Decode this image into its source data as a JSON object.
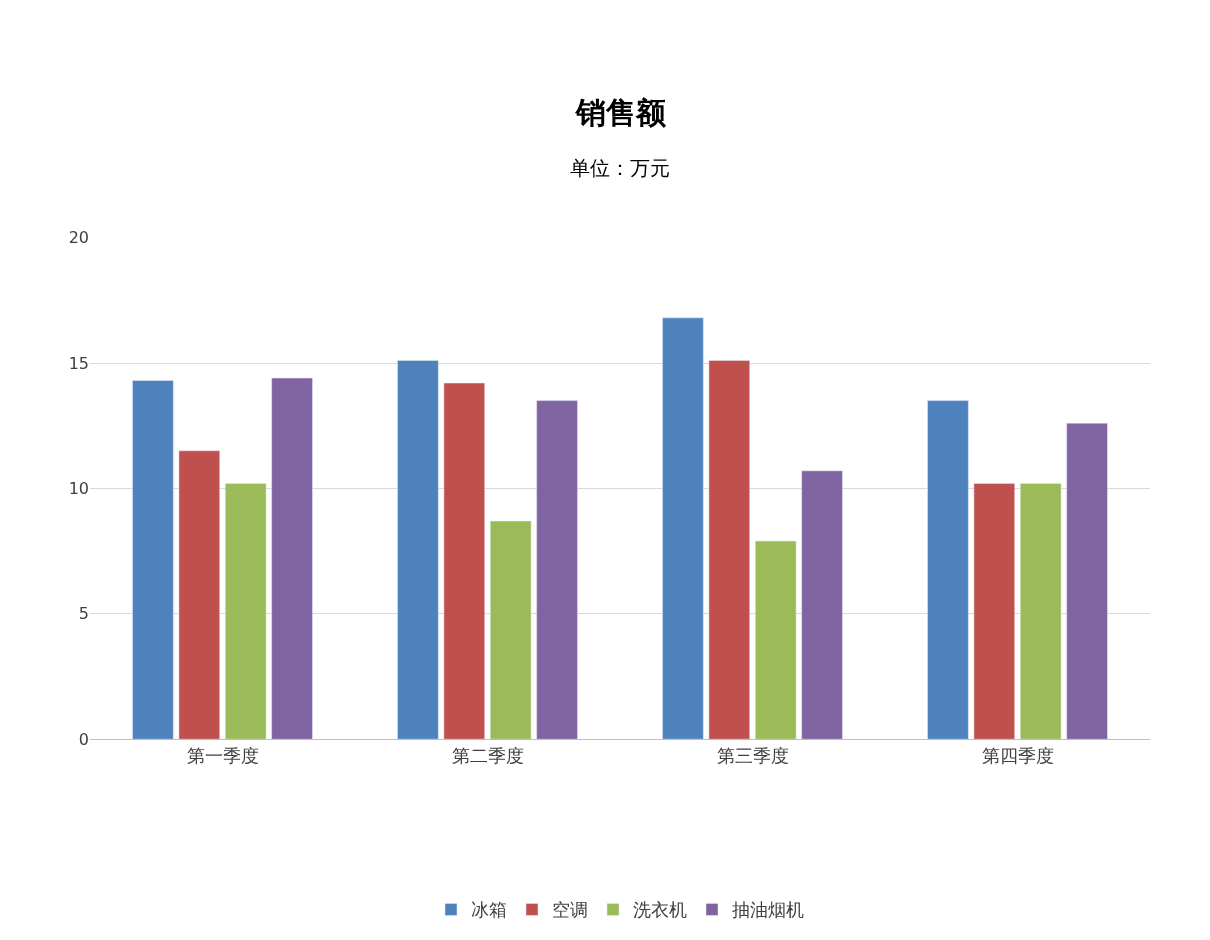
{
  "chart_data": {
    "type": "bar",
    "title": "销售额",
    "subtitle": "单位：万元",
    "categories": [
      "第一季度",
      "第二季度",
      "第三季度",
      "第四季度"
    ],
    "series": [
      {
        "name": "冰箱",
        "color": "#4f81bd",
        "values": [
          14.3,
          15.1,
          16.8,
          13.5
        ]
      },
      {
        "name": "空调",
        "color": "#c0504d",
        "values": [
          11.5,
          14.2,
          15.1,
          10.2
        ]
      },
      {
        "name": "洗衣机",
        "color": "#9bbb59",
        "values": [
          10.2,
          8.7,
          7.9,
          10.2
        ]
      },
      {
        "name": "抽油烟机",
        "color": "#8064a2",
        "values": [
          14.4,
          13.5,
          10.7,
          12.6
        ]
      }
    ],
    "ylim": [
      0,
      20
    ],
    "yticks": [
      0,
      5,
      10,
      15,
      20
    ],
    "grid": "y",
    "legend": "bottom"
  }
}
